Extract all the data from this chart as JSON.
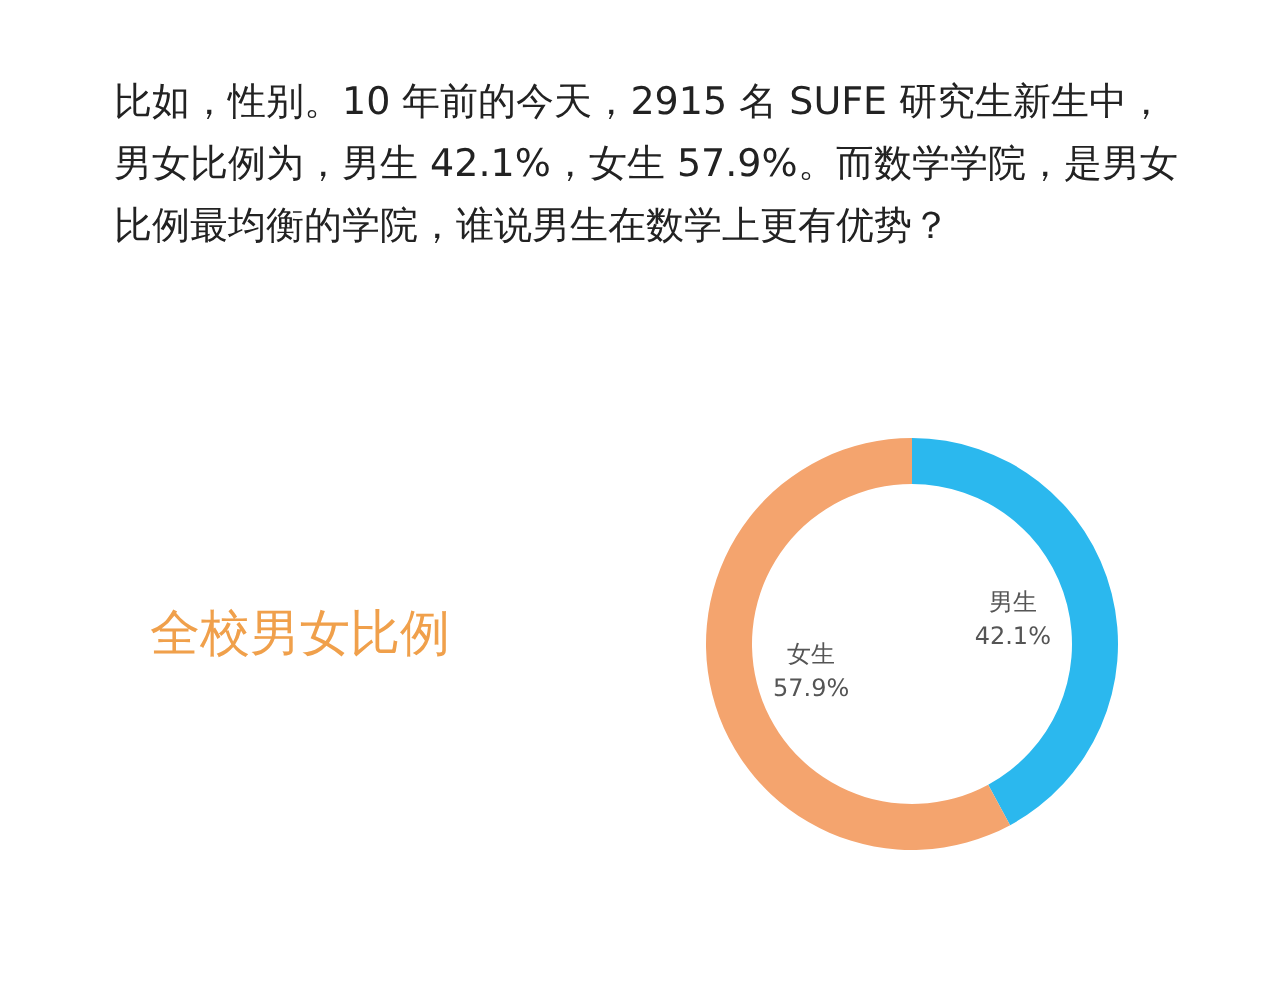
{
  "chart_data": {
    "type": "donut",
    "title": "全校男女比例",
    "categories": [
      "男生",
      "女生"
    ],
    "values": [
      42.1,
      57.9
    ],
    "colors": [
      "#2bb8ee",
      "#f4a46e"
    ],
    "value_labels": [
      "42.1%",
      "57.9%"
    ],
    "annotations": [
      "比如，性别。10 年前的今天，2915 名 SUFE 研究生新生中，男女比例为，男生 42.1%，女生 57.9%。而数学学院，是男女比例最均衡的学院，谁说男生在数学上更有优势？"
    ]
  }
}
